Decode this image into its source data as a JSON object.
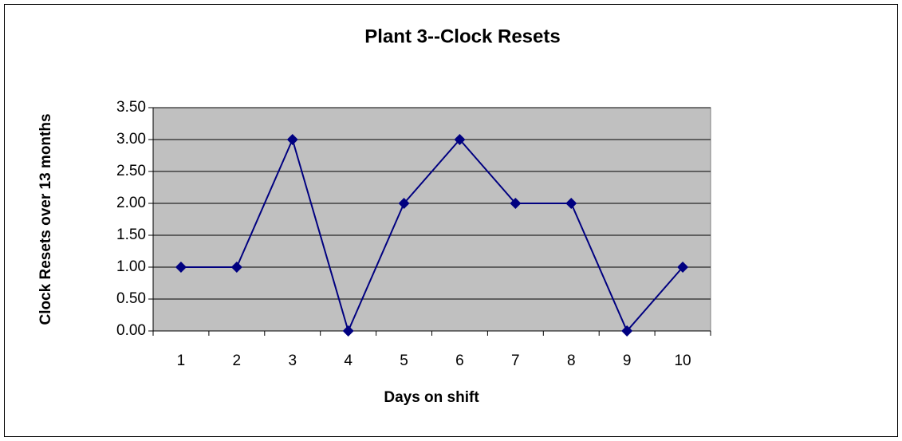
{
  "chart_data": {
    "type": "line",
    "title": "Plant 3--Clock Resets",
    "x_label": "Days on shift",
    "y_label": "Clock Resets over 13 months",
    "categories": [
      "1",
      "2",
      "3",
      "4",
      "5",
      "6",
      "7",
      "8",
      "9",
      "10"
    ],
    "series": [
      {
        "name": "Clock Resets",
        "color": "#000080",
        "values": [
          1,
          1,
          3,
          0,
          2,
          3,
          2,
          2,
          0,
          1
        ]
      }
    ],
    "ylim": [
      0,
      3.5
    ],
    "yticks": [
      {
        "value": 0,
        "label": "0.00"
      },
      {
        "value": 0.5,
        "label": "0.50"
      },
      {
        "value": 1,
        "label": "1.00"
      },
      {
        "value": 1.5,
        "label": "1.50"
      },
      {
        "value": 2,
        "label": "2.00"
      },
      {
        "value": 2.5,
        "label": "2.50"
      },
      {
        "value": 3,
        "label": "3.00"
      },
      {
        "value": 3.5,
        "label": "3.50"
      }
    ],
    "grid": true,
    "plot_background": "#c0c0c0",
    "marker": "diamond"
  }
}
